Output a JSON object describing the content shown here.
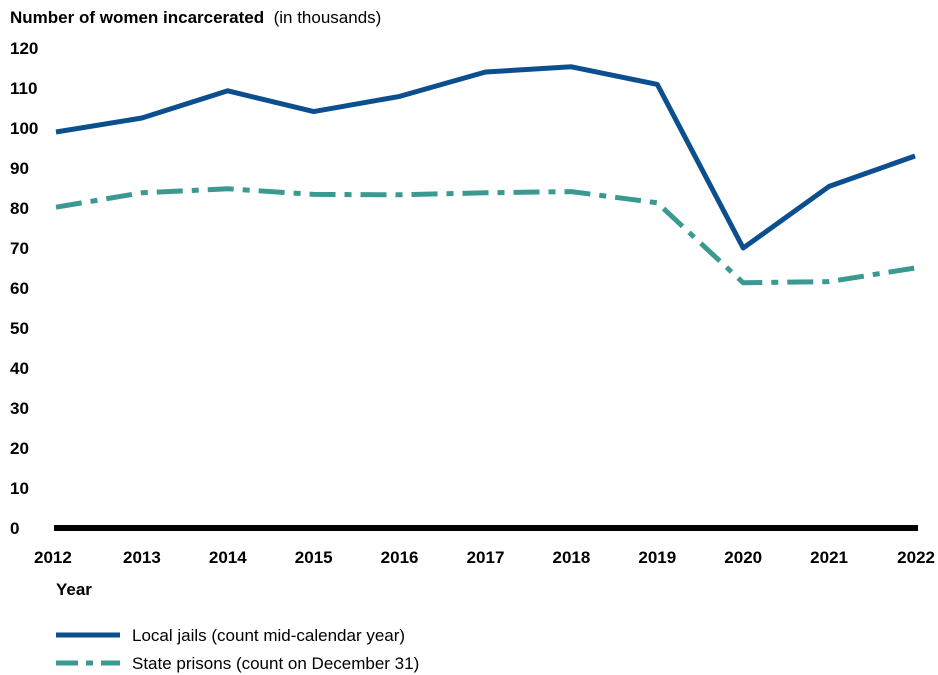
{
  "chart_data": {
    "type": "line",
    "title": "Number of women incarcerated",
    "title_unit": "(in thousands)",
    "xlabel": "Year",
    "ylabel": "",
    "ylim": [
      0,
      120
    ],
    "yticks": [
      0,
      10,
      20,
      30,
      40,
      50,
      60,
      70,
      80,
      90,
      100,
      110,
      120
    ],
    "x": [
      "2012",
      "2013",
      "2014",
      "2015",
      "2016",
      "2017",
      "2018",
      "2019",
      "2020",
      "2021",
      "2022"
    ],
    "grid": false,
    "legend_position": "bottom-left",
    "series": [
      {
        "name": "Local jails (count mid-calendar year)",
        "color": "#0b4f8f",
        "style": "solid",
        "values": [
          99.0,
          102.5,
          109.3,
          104.1,
          107.9,
          114.0,
          115.3,
          110.9,
          70.0,
          85.4,
          93.0
        ]
      },
      {
        "name": "State prisons (count on December 31)",
        "color": "#3a9a92",
        "style": "dash-dot",
        "values": [
          80.2,
          83.8,
          84.8,
          83.4,
          83.3,
          83.8,
          84.1,
          81.3,
          61.3,
          61.6,
          65.0
        ]
      }
    ]
  }
}
